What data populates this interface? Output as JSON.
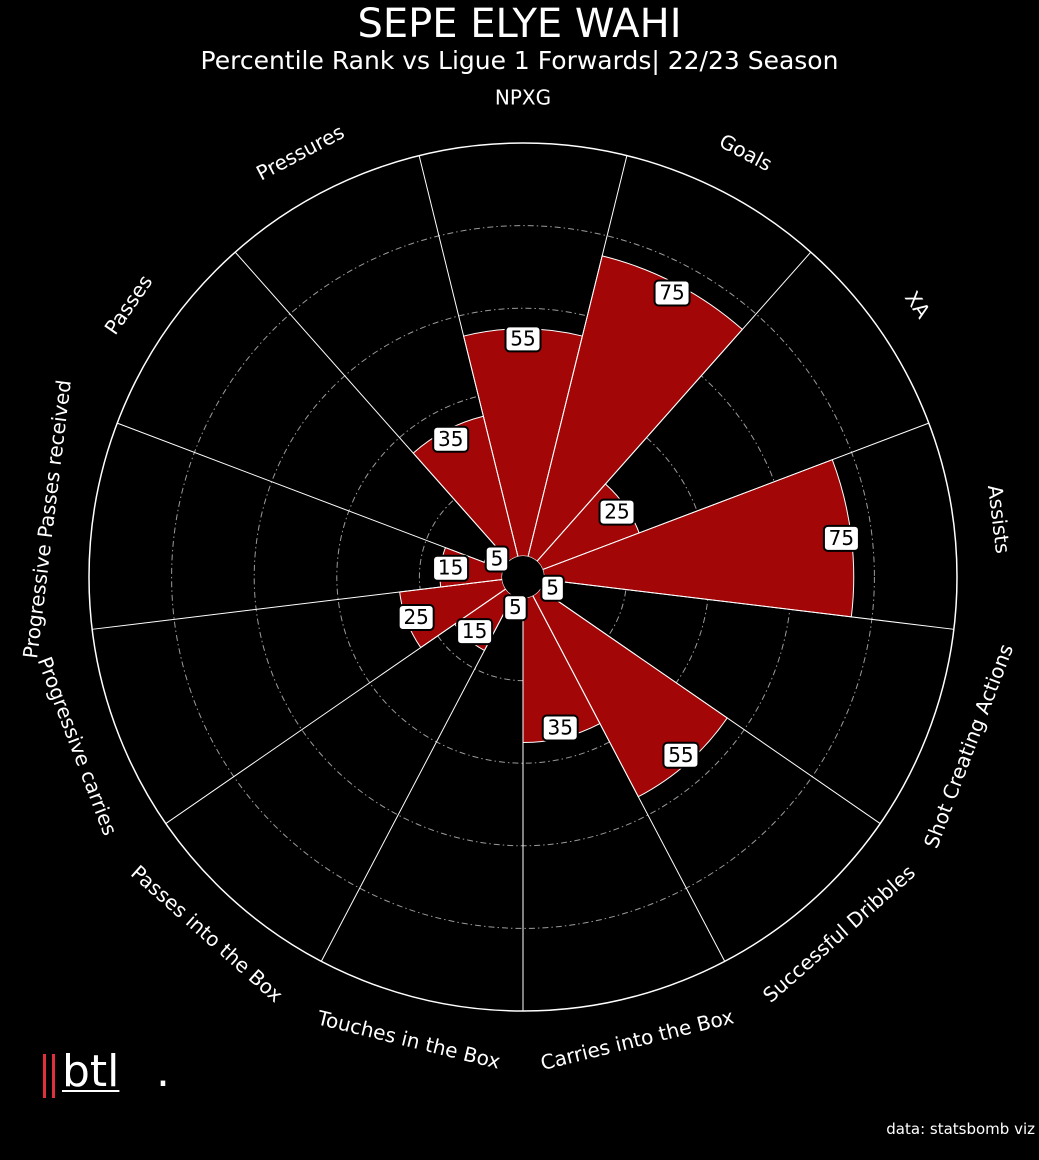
{
  "header": {
    "title": "SEPE ELYE WAHI",
    "subtitle": "Percentile Rank vs Ligue 1 Forwards| 22/23 Season"
  },
  "chart_data": {
    "type": "polar-bar",
    "categories": [
      "NPXG",
      "Goals",
      "XA",
      "Assists",
      "Shot Creating Actions",
      "Successful Dribbles",
      "Carries into the Box",
      "Touches in the Box",
      "Passes into the Box",
      "Progressive carries",
      "Progressive Passes received",
      "Passes",
      "Pressures"
    ],
    "values": [
      55,
      75,
      25,
      75,
      5,
      55,
      35,
      5,
      15,
      25,
      15,
      5,
      35
    ],
    "rlim": [
      0,
      100
    ],
    "grid": true,
    "colors": {
      "bar": "#a30606",
      "background": "#000000",
      "grid": "#ffffff"
    }
  },
  "logo": {
    "text": "btl",
    "dot": "."
  },
  "footer": {
    "credit": "data: statsbomb viz"
  }
}
